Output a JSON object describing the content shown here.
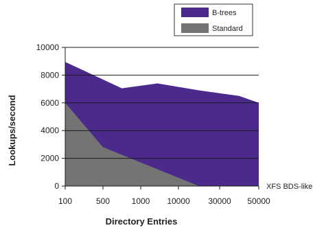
{
  "chart_data": {
    "type": "area",
    "categories": [
      "100",
      "500",
      "1000",
      "10000",
      "30000",
      "50000"
    ],
    "x": [
      100,
      300,
      500,
      750,
      1000,
      5000,
      10000,
      20000,
      30000,
      40000,
      50000
    ],
    "series": [
      {
        "name": "B-trees",
        "color": "#4b2a8c",
        "values": [
          8950,
          null,
          null,
          7050,
          null,
          7400,
          null,
          6900,
          null,
          6500,
          6000
        ]
      },
      {
        "name": "Standard",
        "color": "#747474",
        "values": [
          6000,
          null,
          2800,
          null,
          null,
          null,
          null,
          0,
          null,
          null,
          null
        ]
      }
    ],
    "xlabel": "Directory Entries",
    "ylabel": "Lookups/second",
    "ylim": [
      0,
      10000
    ],
    "yticks": [
      "0",
      "2000",
      "4000",
      "6000",
      "8000",
      "10000"
    ],
    "annotation": "XFS BDS-like",
    "grid": "horizontal",
    "legend_position": "top-right"
  }
}
